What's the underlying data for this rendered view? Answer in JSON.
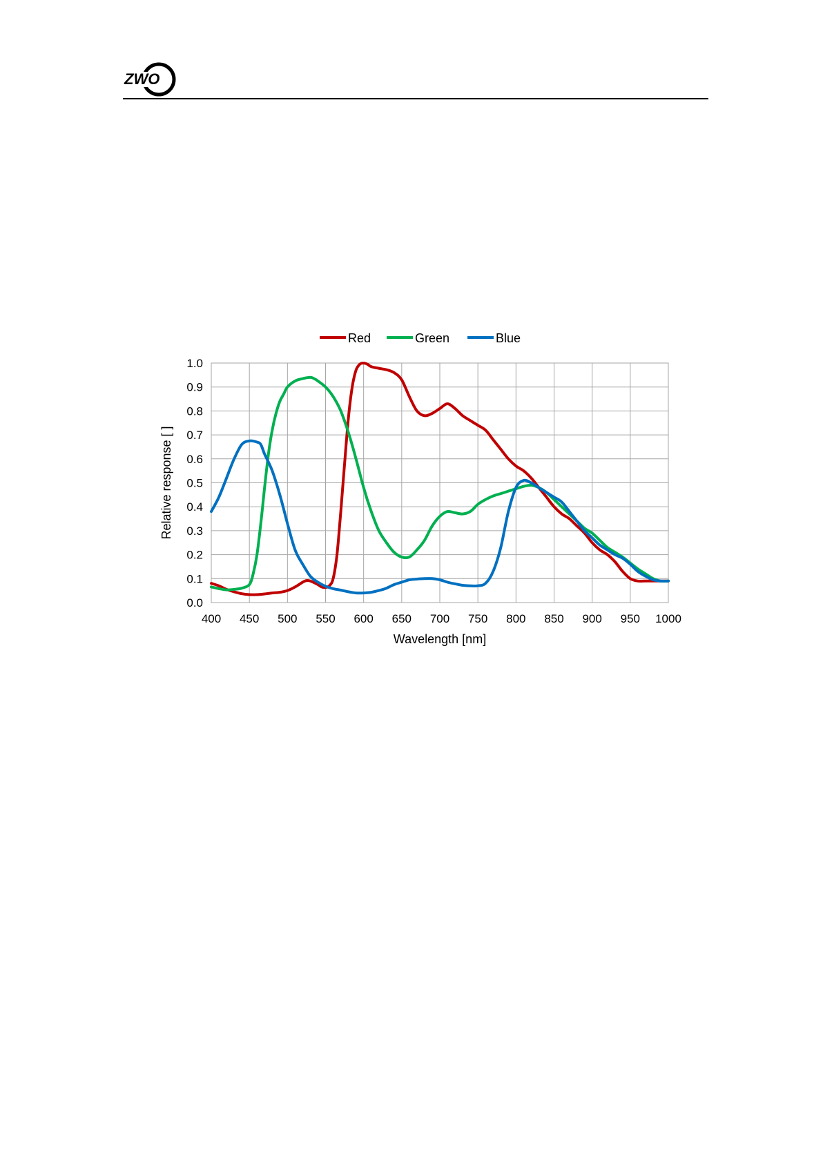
{
  "header": {
    "logo_text": "ZWO",
    "logo_icon": "zwo-logo-icon"
  },
  "chart_data": {
    "type": "line",
    "title": "",
    "xlabel": "Wavelength [nm]",
    "ylabel": "Relative response [ ]",
    "xlim": [
      400,
      1000
    ],
    "ylim": [
      0.0,
      1.0
    ],
    "x_ticks": [
      "400",
      "450",
      "500",
      "550",
      "600",
      "650",
      "700",
      "750",
      "800",
      "850",
      "900",
      "950",
      "1000"
    ],
    "y_ticks": [
      "0.0",
      "0.1",
      "0.2",
      "0.3",
      "0.4",
      "0.5",
      "0.6",
      "0.7",
      "0.8",
      "0.9",
      "1.0"
    ],
    "grid": true,
    "legend_position": "top",
    "series": [
      {
        "name": "Red",
        "color": "#c00000",
        "x": [
          400,
          410,
          420,
          430,
          440,
          450,
          460,
          470,
          480,
          490,
          500,
          510,
          520,
          525,
          530,
          540,
          545,
          550,
          555,
          560,
          565,
          570,
          575,
          580,
          585,
          590,
          595,
          600,
          605,
          610,
          620,
          630,
          640,
          650,
          660,
          670,
          680,
          690,
          700,
          710,
          720,
          730,
          740,
          750,
          760,
          770,
          780,
          790,
          800,
          810,
          820,
          830,
          840,
          850,
          860,
          870,
          880,
          890,
          900,
          910,
          920,
          930,
          940,
          950,
          960,
          970,
          980,
          990,
          1000
        ],
        "y": [
          0.08,
          0.07,
          0.055,
          0.045,
          0.037,
          0.033,
          0.033,
          0.036,
          0.04,
          0.043,
          0.05,
          0.065,
          0.085,
          0.092,
          0.09,
          0.075,
          0.065,
          0.063,
          0.07,
          0.1,
          0.2,
          0.38,
          0.58,
          0.77,
          0.9,
          0.97,
          0.995,
          1.0,
          0.995,
          0.985,
          0.978,
          0.972,
          0.96,
          0.93,
          0.86,
          0.8,
          0.78,
          0.79,
          0.81,
          0.83,
          0.81,
          0.78,
          0.76,
          0.74,
          0.72,
          0.68,
          0.64,
          0.6,
          0.57,
          0.55,
          0.52,
          0.48,
          0.44,
          0.4,
          0.37,
          0.35,
          0.32,
          0.29,
          0.25,
          0.22,
          0.2,
          0.17,
          0.13,
          0.1,
          0.09,
          0.09,
          0.09,
          0.09,
          0.09
        ]
      },
      {
        "name": "Green",
        "color": "#00b050",
        "x": [
          400,
          410,
          420,
          430,
          440,
          450,
          455,
          460,
          465,
          470,
          475,
          480,
          485,
          490,
          495,
          500,
          510,
          520,
          530,
          535,
          540,
          550,
          560,
          570,
          580,
          590,
          600,
          610,
          620,
          630,
          640,
          650,
          660,
          670,
          680,
          690,
          700,
          710,
          720,
          730,
          740,
          750,
          760,
          770,
          780,
          790,
          800,
          810,
          820,
          830,
          840,
          850,
          860,
          870,
          880,
          890,
          900,
          910,
          920,
          930,
          940,
          950,
          960,
          970,
          980,
          990,
          1000
        ],
        "y": [
          0.065,
          0.058,
          0.053,
          0.055,
          0.06,
          0.075,
          0.12,
          0.2,
          0.33,
          0.48,
          0.62,
          0.72,
          0.79,
          0.84,
          0.87,
          0.9,
          0.925,
          0.935,
          0.94,
          0.935,
          0.925,
          0.9,
          0.86,
          0.8,
          0.71,
          0.6,
          0.48,
          0.38,
          0.3,
          0.25,
          0.21,
          0.19,
          0.19,
          0.22,
          0.26,
          0.32,
          0.36,
          0.38,
          0.375,
          0.37,
          0.38,
          0.41,
          0.43,
          0.445,
          0.455,
          0.465,
          0.475,
          0.485,
          0.49,
          0.48,
          0.46,
          0.43,
          0.4,
          0.37,
          0.34,
          0.31,
          0.29,
          0.26,
          0.23,
          0.21,
          0.19,
          0.165,
          0.14,
          0.12,
          0.1,
          0.09,
          0.09
        ]
      },
      {
        "name": "Blue",
        "color": "#0070c0",
        "x": [
          400,
          410,
          420,
          430,
          440,
          450,
          460,
          465,
          470,
          480,
          490,
          500,
          510,
          520,
          530,
          540,
          550,
          560,
          570,
          580,
          590,
          600,
          610,
          620,
          630,
          640,
          650,
          660,
          670,
          680,
          690,
          700,
          710,
          720,
          730,
          740,
          750,
          760,
          770,
          780,
          790,
          800,
          810,
          820,
          830,
          840,
          850,
          860,
          870,
          880,
          890,
          900,
          910,
          920,
          930,
          940,
          950,
          960,
          970,
          980,
          990,
          1000
        ],
        "y": [
          0.38,
          0.44,
          0.52,
          0.6,
          0.66,
          0.675,
          0.67,
          0.66,
          0.62,
          0.55,
          0.45,
          0.33,
          0.22,
          0.16,
          0.11,
          0.085,
          0.068,
          0.058,
          0.052,
          0.045,
          0.04,
          0.04,
          0.043,
          0.05,
          0.06,
          0.075,
          0.085,
          0.095,
          0.098,
          0.1,
          0.1,
          0.095,
          0.085,
          0.078,
          0.072,
          0.07,
          0.07,
          0.08,
          0.13,
          0.23,
          0.38,
          0.48,
          0.51,
          0.5,
          0.48,
          0.46,
          0.44,
          0.42,
          0.38,
          0.34,
          0.3,
          0.27,
          0.24,
          0.22,
          0.2,
          0.185,
          0.16,
          0.13,
          0.11,
          0.095,
          0.09,
          0.09
        ]
      }
    ]
  }
}
